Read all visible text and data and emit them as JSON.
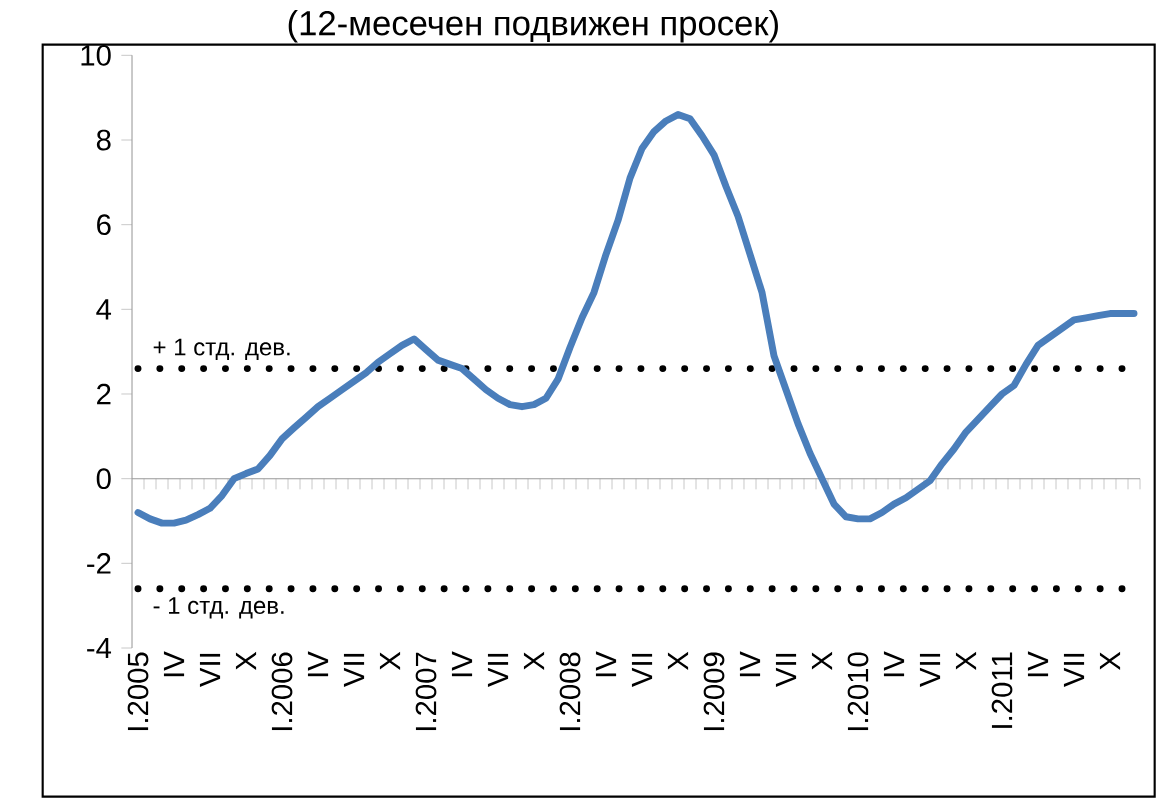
{
  "chart_data": {
    "type": "line",
    "title": "(12-месечен подвижен просек)",
    "categories": [
      "I.2005",
      null,
      null,
      "IV",
      null,
      null,
      "VII",
      null,
      null,
      "X",
      null,
      null,
      "I.2006",
      null,
      null,
      "IV",
      null,
      null,
      "VII",
      null,
      null,
      "X",
      null,
      null,
      "I.2007",
      null,
      null,
      "IV",
      null,
      null,
      "VII",
      null,
      null,
      "X",
      null,
      null,
      "I.2008",
      null,
      null,
      "IV",
      null,
      null,
      "VII",
      null,
      null,
      "X",
      null,
      null,
      "I.2009",
      null,
      null,
      "IV",
      null,
      null,
      "VII",
      null,
      null,
      "X",
      null,
      null,
      "I.2010",
      null,
      null,
      "IV",
      null,
      null,
      "VII",
      null,
      null,
      "X",
      null,
      null,
      "I.2011",
      null,
      null,
      "IV",
      null,
      null,
      "VII",
      null,
      null,
      "X",
      null,
      null
    ],
    "series": [
      {
        "color": "#4a7ebb",
        "values": [
          -0.8,
          -0.95,
          -1.05,
          -1.05,
          -0.98,
          -0.85,
          -0.7,
          -0.4,
          0,
          0.12,
          0.23,
          0.55,
          0.94,
          1.2,
          1.45,
          1.7,
          1.9,
          2.1,
          2.3,
          2.5,
          2.75,
          2.95,
          3.15,
          3.3,
          3.05,
          2.8,
          2.7,
          2.6,
          2.35,
          2.1,
          1.9,
          1.75,
          1.7,
          1.75,
          1.9,
          2.35,
          3.1,
          3.8,
          4.4,
          5.3,
          6.1,
          7.1,
          7.8,
          8.2,
          8.45,
          8.6,
          8.5,
          8.1,
          7.65,
          6.9,
          6.2,
          5.3,
          4.4,
          2.9,
          2.1,
          1.3,
          0.6,
          0,
          -0.6,
          -0.9,
          -0.95,
          -0.95,
          -0.8,
          -0.6,
          -0.45,
          -0.25,
          -0.05,
          0.35,
          0.7,
          1.1,
          1.4,
          1.7,
          2.0,
          2.2,
          2.7,
          3.15,
          3.35,
          3.55,
          3.75,
          3.8,
          3.85,
          3.9,
          3.9,
          3.9
        ]
      }
    ],
    "ylim": [
      -4,
      10
    ],
    "yticks": [
      -4,
      -2,
      0,
      2,
      4,
      6,
      8,
      10
    ],
    "ref_lines": [
      {
        "axis": "y",
        "value": 2.6,
        "label": "+ 1 стд. дев.",
        "color": "#000000",
        "line_style": "dotted"
      },
      {
        "axis": "y",
        "value": -2.6,
        "label": "- 1 стд. дев.",
        "color": "#000000",
        "line_style": "dotted"
      }
    ],
    "marker": "none",
    "line_style": "solid"
  }
}
